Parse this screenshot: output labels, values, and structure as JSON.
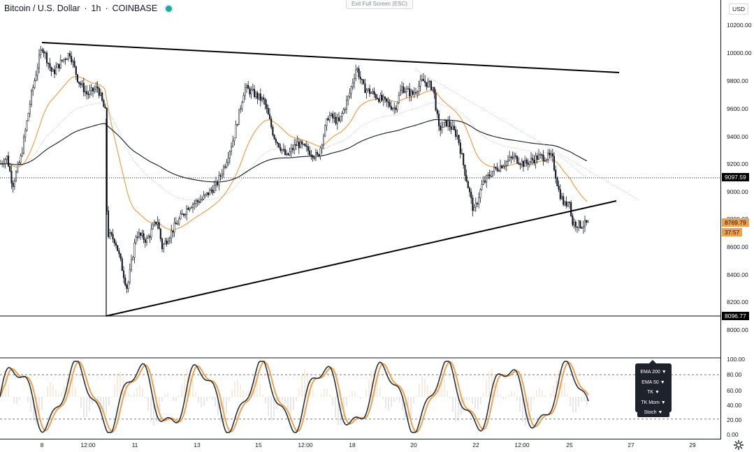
{
  "header": {
    "symbol": "Bitcoin / U.S. Dollar",
    "interval": "1h",
    "exchange": "COINBASE",
    "status_color": "#26a69a"
  },
  "exit_fullscreen_label": "Exit Full Screen (ESC)",
  "currency_label": "USD",
  "price_axis": {
    "ticks": [
      "10200.00",
      "10000.00",
      "9800.00",
      "9600.00",
      "9400.00",
      "9200.00",
      "9000.00",
      "8800.00",
      "8600.00",
      "8400.00",
      "8200.00",
      "8000.00"
    ],
    "oscillator_ticks": [
      "100.00",
      "80.00",
      "60.00",
      "40.00",
      "20.00",
      "0.00"
    ]
  },
  "price_tags": {
    "line_level": "9097.59",
    "last_price": "8769.79",
    "countdown": "37:57",
    "support_level": "8096.77"
  },
  "time_axis": [
    "8",
    "12:00",
    "11",
    "13",
    "15",
    "12:00",
    "18",
    "20",
    "22",
    "12:00",
    "25",
    "27",
    "29"
  ],
  "indicator_menu": {
    "items": [
      "EMA 200 ▼",
      "EMA 50 ▼",
      "TK ▼",
      "TK Mom ▼"
    ],
    "stoch": "Stoch ▼"
  },
  "colors": {
    "up": "#ffffff",
    "down": "#131722",
    "ema_orange": "#f0a04b",
    "ema_dark": "#131722",
    "grey": "#b8b8b8"
  }
}
